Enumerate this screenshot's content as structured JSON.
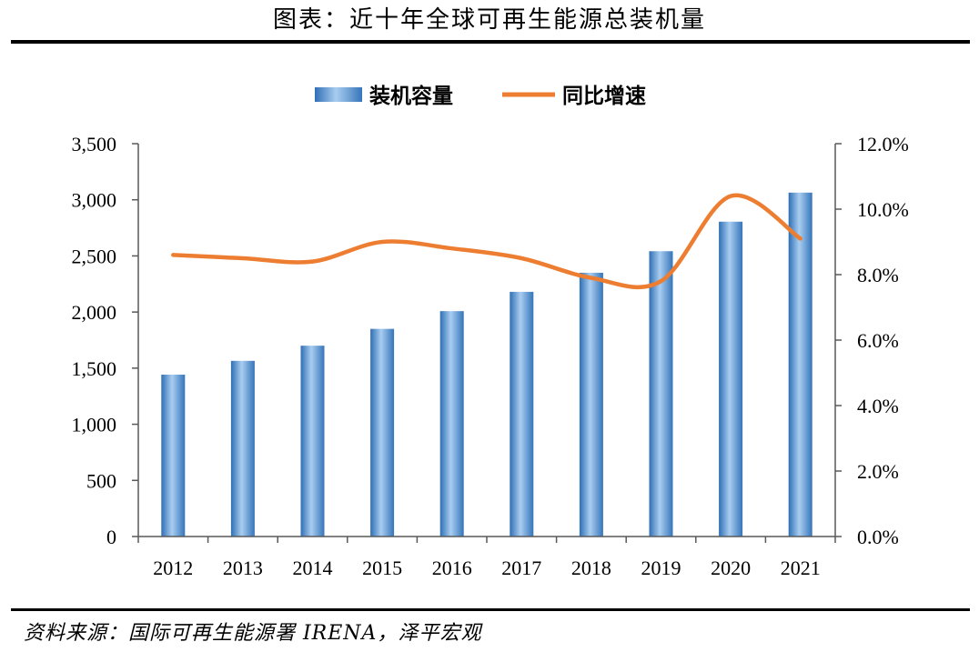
{
  "header": {
    "title": "图表：近十年全球可再生能源总装机量"
  },
  "footer": {
    "source": "资料来源：国际可再生能源署 IRENA，泽平宏观"
  },
  "chart_data": {
    "type": "bar",
    "categories": [
      "2012",
      "2013",
      "2014",
      "2015",
      "2016",
      "2017",
      "2018",
      "2019",
      "2020",
      "2021"
    ],
    "series": [
      {
        "name": "装机容量",
        "type": "bar",
        "axis": "left",
        "values": [
          1442,
          1565,
          1700,
          1850,
          2008,
          2180,
          2350,
          2542,
          2805,
          3064
        ],
        "color": "#5b9bd5"
      },
      {
        "name": "同比增速",
        "type": "line",
        "axis": "right",
        "values": [
          8.6,
          8.5,
          8.4,
          9.0,
          8.8,
          8.5,
          7.9,
          7.8,
          10.4,
          9.1
        ],
        "color": "#ed7d31"
      }
    ],
    "left_axis": {
      "ylim": [
        0,
        3500
      ],
      "ticks": [
        "0",
        "500",
        "1,000",
        "1,500",
        "2,000",
        "2,500",
        "3,000",
        "3,500"
      ]
    },
    "right_axis": {
      "ylim": [
        0,
        12
      ],
      "unit": "%",
      "ticks": [
        "0.0%",
        "2.0%",
        "4.0%",
        "6.0%",
        "8.0%",
        "10.0%",
        "12.0%"
      ]
    },
    "legend_position": "top-center",
    "grid": false
  }
}
